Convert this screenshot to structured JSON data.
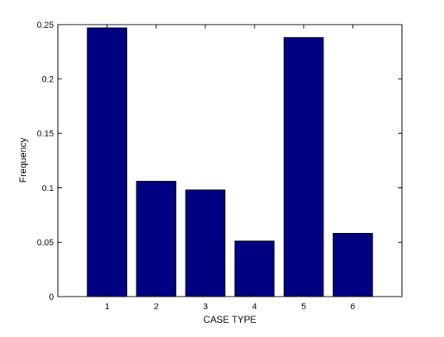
{
  "chart_data": {
    "type": "bar",
    "title": "",
    "xlabel": "CASE TYPE",
    "ylabel": "Frequency",
    "categories": [
      "1",
      "2",
      "3",
      "4",
      "5",
      "6"
    ],
    "values": [
      0.247,
      0.106,
      0.098,
      0.051,
      0.238,
      0.058
    ],
    "ylim": [
      0,
      0.25
    ],
    "yticks": [
      "0",
      "0.05",
      "0.1",
      "0.15",
      "0.2",
      "0.25"
    ],
    "grid": false,
    "legend": "none",
    "colors": {
      "bar": "#000080",
      "axis": "#000000",
      "background": "#ffffff"
    }
  }
}
